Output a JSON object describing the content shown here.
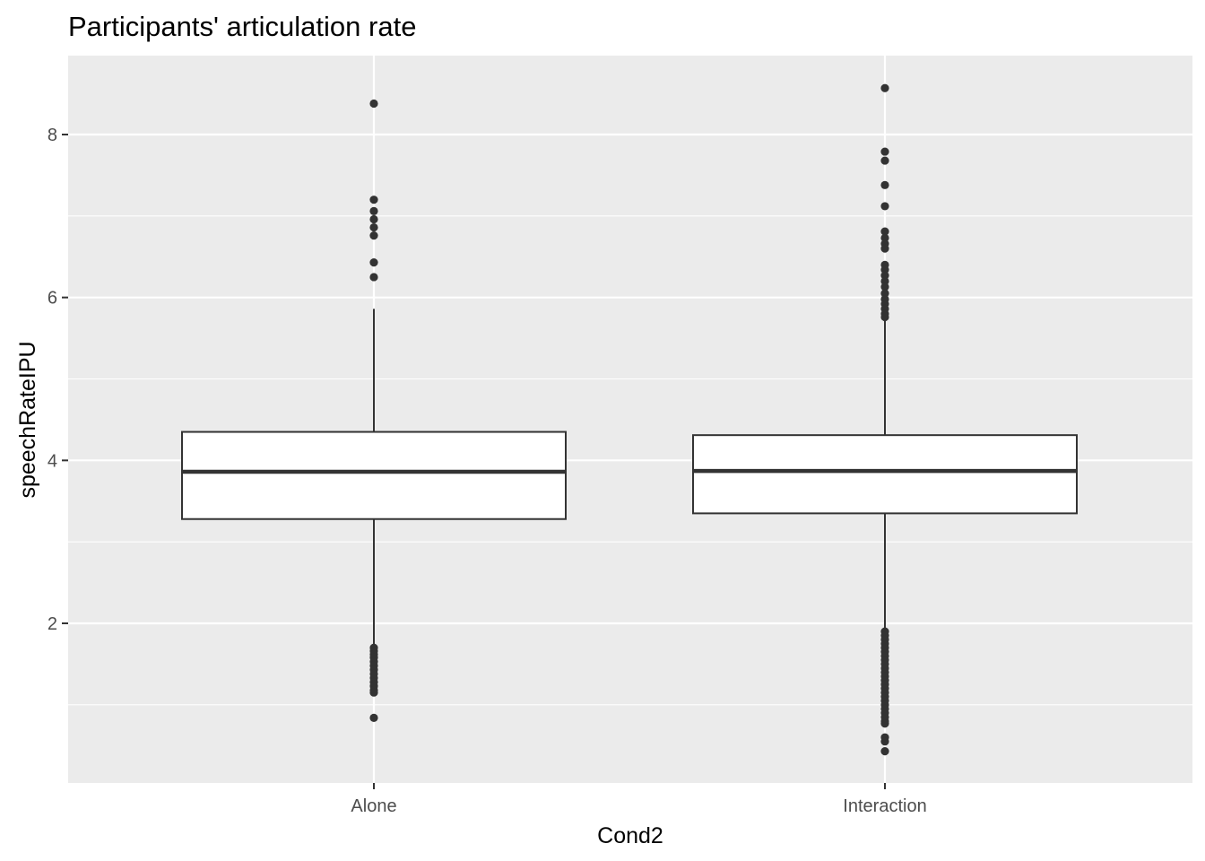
{
  "chart_data": {
    "type": "boxplot",
    "title": "Participants' articulation rate",
    "xlabel": "Cond2",
    "ylabel": "speechRateIPU",
    "categories": [
      "Alone",
      "Interaction"
    ],
    "yticks": [
      2,
      4,
      6,
      8
    ],
    "ylim": [
      0.35,
      8.9
    ],
    "grid": true,
    "legend": "none",
    "boxes": [
      {
        "category": "Alone",
        "whisker_low": 1.72,
        "q1": 3.28,
        "median": 3.86,
        "q3": 4.35,
        "whisker_high": 5.86,
        "outliers": [
          8.38,
          7.2,
          7.06,
          6.96,
          6.86,
          6.76,
          6.43,
          6.25,
          1.7,
          1.66,
          1.62,
          1.58,
          1.53,
          1.48,
          1.43,
          1.38,
          1.33,
          1.28,
          1.23,
          1.18,
          1.15,
          0.84
        ]
      },
      {
        "category": "Interaction",
        "whisker_low": 1.93,
        "q1": 3.35,
        "median": 3.87,
        "q3": 4.31,
        "whisker_high": 5.74,
        "outliers": [
          8.57,
          7.79,
          7.68,
          7.38,
          7.12,
          6.81,
          6.73,
          6.66,
          6.6,
          6.4,
          6.34,
          6.27,
          6.2,
          6.13,
          6.05,
          5.98,
          5.92,
          5.86,
          5.8,
          5.76,
          1.9,
          1.85,
          1.8,
          1.75,
          1.7,
          1.65,
          1.6,
          1.55,
          1.5,
          1.45,
          1.4,
          1.35,
          1.3,
          1.25,
          1.2,
          1.15,
          1.1,
          1.05,
          1.0,
          0.95,
          0.9,
          0.85,
          0.8,
          0.77,
          0.6,
          0.55,
          0.43
        ]
      }
    ],
    "colors": {
      "panel_bg": "#ebebeb",
      "grid": "#ffffff",
      "box_fill": "#ffffff",
      "box_line": "#333333",
      "point": "#333333"
    }
  }
}
